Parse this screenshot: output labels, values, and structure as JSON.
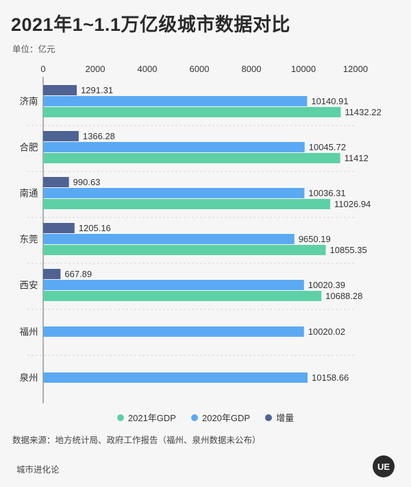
{
  "title": "2021年1~1.1万亿级城市数据对比",
  "unit_label": "单位：亿元",
  "source": "数据来源：地方统计局、政府工作报告（福州、泉州数据未公布）",
  "brand": "城市进化论",
  "logo_text": "UE",
  "chart_data": {
    "type": "bar",
    "orientation": "horizontal",
    "categories": [
      "济南",
      "合肥",
      "南通",
      "东莞",
      "西安",
      "福州",
      "泉州"
    ],
    "series": [
      {
        "name": "增量",
        "color": "#4e6394",
        "values": [
          1291.31,
          1366.28,
          990.63,
          1205.16,
          667.89,
          null,
          null
        ],
        "labels": [
          "1291.31",
          "1366.28",
          "990.63",
          "1205.16",
          "667.89",
          null,
          null
        ]
      },
      {
        "name": "2020年GDP",
        "color": "#5aa9f2",
        "values": [
          10140.91,
          10045.72,
          10036.31,
          9650.19,
          10020.39,
          10020.02,
          10158.66
        ],
        "labels": [
          "10140.91",
          "10045.72",
          "10036.31",
          "9650.19",
          "10020.39",
          "10020.02",
          "10158.66"
        ]
      },
      {
        "name": "2021年GDP",
        "color": "#5dd1a5",
        "values": [
          11432.22,
          11412,
          11026.94,
          10855.35,
          10688.28,
          null,
          null
        ],
        "labels": [
          "11432.22",
          "11412",
          "11026.94",
          "10855.35",
          "10688.28",
          null,
          null
        ]
      }
    ],
    "legend_order": [
      "2021年GDP",
      "2020年GDP",
      "增量"
    ],
    "xticks": [
      0,
      2000,
      4000,
      6000,
      8000,
      10000,
      12000
    ],
    "xlim": [
      0,
      12000
    ],
    "legend_position": "bottom"
  }
}
